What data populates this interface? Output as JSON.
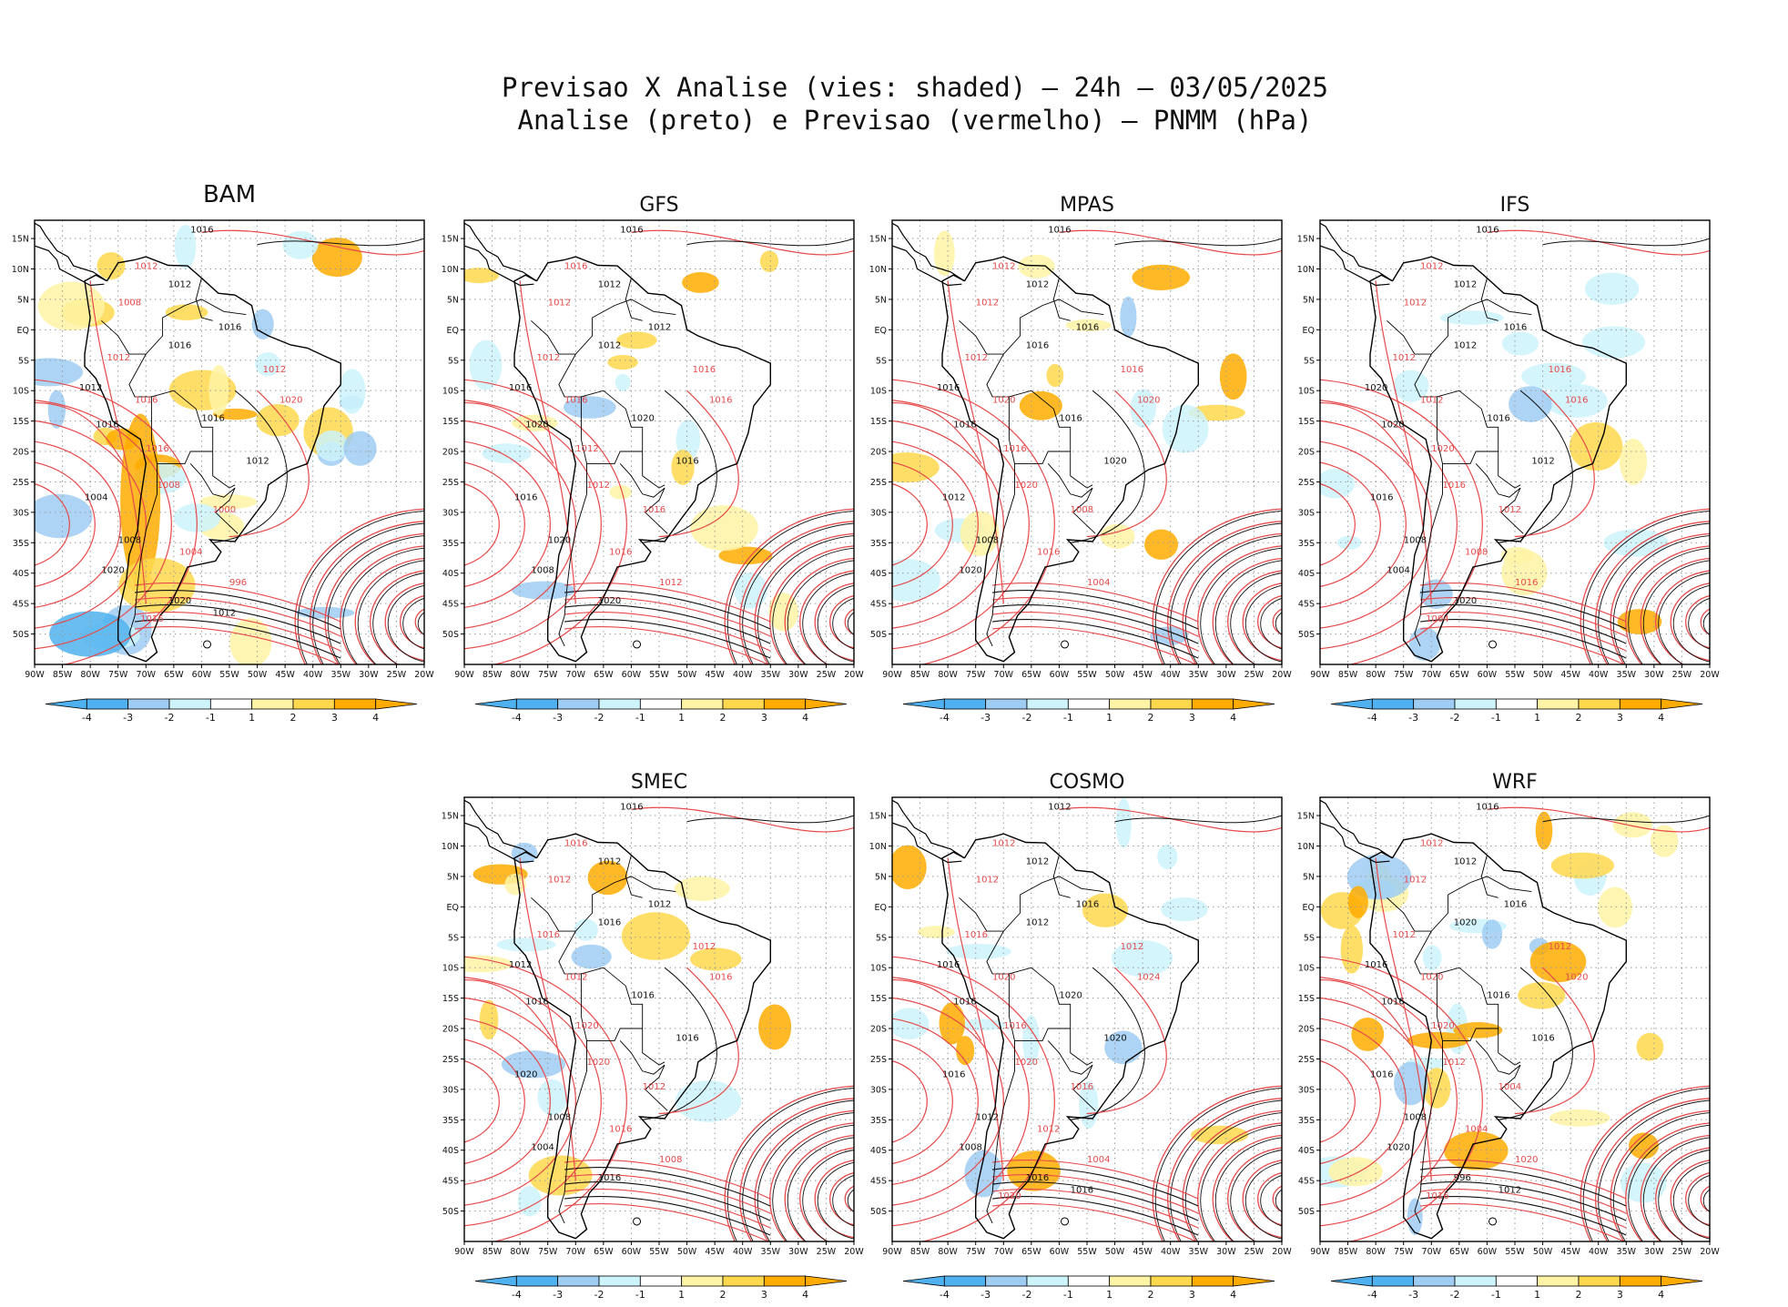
{
  "title": {
    "line1": "Previsao X Analise (vies: shaded) – 24h – 03/05/2025",
    "line2": "Analise (preto) e Previsao (vermelho) – PNMM (hPa)"
  },
  "colors": {
    "analysis": "#111111",
    "forecast": "#e8494a",
    "bias_neg": [
      "#4fb1ef",
      "#9fccf2",
      "#cdf3fb"
    ],
    "bias_pos": [
      "#fff3a5",
      "#ffd84d",
      "#ffab00"
    ],
    "grid": "#9a9a9a",
    "coast": "#000000"
  },
  "chart_data": {
    "type": "map-panels",
    "lat_ticks": [
      "15N",
      "10N",
      "5N",
      "EQ",
      "5S",
      "10S",
      "15S",
      "20S",
      "25S",
      "30S",
      "35S",
      "40S",
      "45S",
      "50S"
    ],
    "lon_ticks": [
      "90W",
      "85W",
      "80W",
      "75W",
      "70W",
      "65W",
      "60W",
      "55W",
      "50W",
      "45W",
      "40W",
      "35W",
      "30W",
      "25W",
      "20W"
    ],
    "colorbar_labels": [
      "-4",
      "-3",
      "-2",
      "-1",
      "1",
      "2",
      "3",
      "4"
    ],
    "panels": [
      {
        "name": "BAM",
        "isobars": [
          "1016",
          "1012",
          "1012",
          "1008",
          "1016",
          "1012",
          "1016",
          "1012",
          "1012",
          "1016",
          "1016",
          "1020",
          "1016",
          "1016",
          "1012",
          "1008",
          "1004",
          "1000",
          "1008",
          "1004",
          "1020",
          "996",
          "1020",
          "1016",
          "1012"
        ]
      },
      {
        "name": "GFS",
        "isobars": [
          "1016",
          "1016",
          "1012",
          "1012",
          "1012",
          "1012",
          "1012",
          "1016",
          "1016",
          "1016",
          "1020",
          "1016",
          "1020",
          "1012",
          "1016",
          "1012",
          "1016",
          "1016",
          "1020",
          "1016",
          "1008",
          "1012",
          "1020"
        ]
      },
      {
        "name": "MPAS",
        "isobars": [
          "1016",
          "1012",
          "1012",
          "1012",
          "1016",
          "1012",
          "1016",
          "1016",
          "1016",
          "1020",
          "1016",
          "1020",
          "1016",
          "1016",
          "1020",
          "1020",
          "1012",
          "1008",
          "1008",
          "1016",
          "1020",
          "1004"
        ]
      },
      {
        "name": "IFS",
        "isobars": [
          "1016",
          "1012",
          "1012",
          "1012",
          "1016",
          "1012",
          "1012",
          "1016",
          "1020",
          "1012",
          "1016",
          "1016",
          "1020",
          "1020",
          "1012",
          "1016",
          "1016",
          "1012",
          "1008",
          "1008",
          "1004",
          "1016",
          "1020",
          "1004"
        ]
      },
      {
        "name": "SMEC",
        "isobars": [
          "1016",
          "1016",
          "1012",
          "1012",
          "1012",
          "1016",
          "1016",
          "1012",
          "1012",
          "1012",
          "1016",
          "1016",
          "1016",
          "1020",
          "1016",
          "1020",
          "1020",
          "1012",
          "1008",
          "1016",
          "1004",
          "1008",
          "1016"
        ]
      },
      {
        "name": "COSMO",
        "isobars": [
          "1012",
          "1012",
          "1012",
          "1012",
          "1016",
          "1016",
          "1012",
          "1012",
          "1016",
          "1020",
          "1020",
          "1024",
          "1016",
          "1016",
          "1020",
          "1020",
          "1016",
          "1016",
          "1012",
          "1012",
          "1008",
          "1004",
          "1016",
          "1020",
          "1016"
        ]
      },
      {
        "name": "WRF",
        "isobars": [
          "1016",
          "1012",
          "1012",
          "1012",
          "1016",
          "1012",
          "1020",
          "1012",
          "1016",
          "1020",
          "1016",
          "1020",
          "1016",
          "1020",
          "1016",
          "1012",
          "1016",
          "1004",
          "1008",
          "1004",
          "1020",
          "1020",
          "996",
          "1016",
          "1012"
        ]
      }
    ]
  }
}
